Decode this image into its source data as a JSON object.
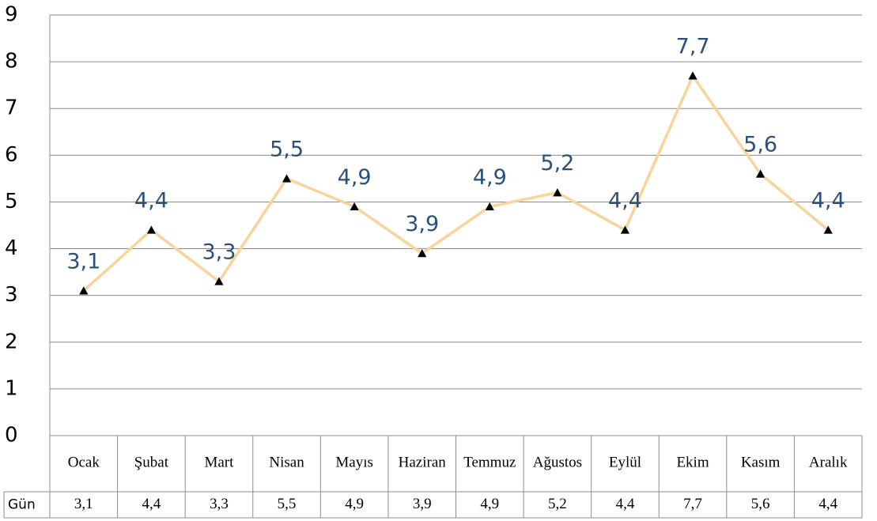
{
  "chart_data": {
    "type": "line",
    "categories": [
      "Ocak",
      "Şubat",
      "Mart",
      "Nisan",
      "Mayıs",
      "Haziran",
      "Temmuz",
      "Ağustos",
      "Eylül",
      "Ekim",
      "Kasım",
      "Aralık"
    ],
    "series": [
      {
        "name": "Gün",
        "color": "#f9d39a",
        "marker_color": "#000000",
        "label_color": "#2b5079",
        "values": [
          3.1,
          4.4,
          3.3,
          5.5,
          4.9,
          3.9,
          4.9,
          5.2,
          4.4,
          7.7,
          5.6,
          4.4
        ],
        "value_labels": [
          "3,1",
          "4,4",
          "3,3",
          "5,5",
          "4,9",
          "3,9",
          "4,9",
          "5,2",
          "4,4",
          "7,7",
          "5,6",
          "4,4"
        ]
      }
    ],
    "ylim": [
      0,
      9
    ],
    "yticks": [
      0,
      1,
      2,
      3,
      4,
      5,
      6,
      7,
      8,
      9
    ],
    "grid": true,
    "data_table": true
  }
}
